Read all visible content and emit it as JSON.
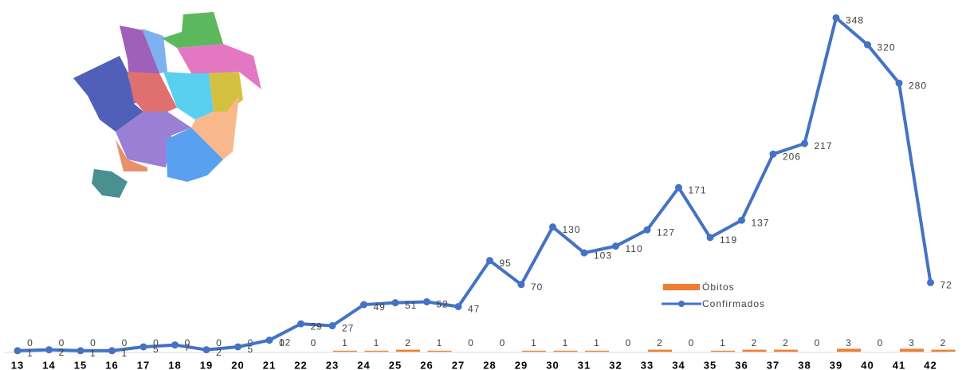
{
  "chart_data": {
    "type": "line_bar",
    "categories": [
      "13",
      "14",
      "15",
      "16",
      "17",
      "18",
      "19",
      "20",
      "21",
      "22",
      "23",
      "24",
      "25",
      "26",
      "27",
      "28",
      "29",
      "30",
      "31",
      "32",
      "33",
      "34",
      "35",
      "36",
      "37",
      "38",
      "39",
      "40",
      "41",
      "42"
    ],
    "series": [
      {
        "name": "Óbitos",
        "type": "bar",
        "color": "#ed7d31",
        "values": [
          0,
          0,
          0,
          0,
          0,
          0,
          0,
          0,
          0,
          0,
          1,
          1,
          2,
          1,
          0,
          0,
          1,
          1,
          1,
          0,
          2,
          0,
          1,
          2,
          2,
          0,
          3,
          0,
          3,
          2
        ]
      },
      {
        "name": "Confirmados",
        "type": "line",
        "color": "#4472c4",
        "values": [
          1,
          2,
          1,
          1,
          5,
          7,
          2,
          5,
          12,
          29,
          27,
          49,
          51,
          52,
          47,
          95,
          70,
          130,
          103,
          110,
          127,
          171,
          119,
          137,
          206,
          217,
          348,
          320,
          280,
          72
        ]
      }
    ],
    "ylim": [
      0,
      350
    ]
  }
}
